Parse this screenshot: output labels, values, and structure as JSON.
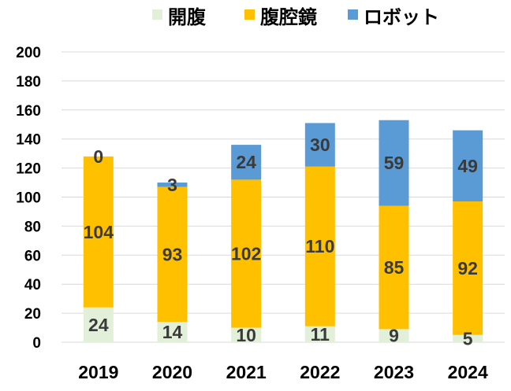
{
  "chart_data": {
    "type": "bar",
    "stacked": true,
    "categories": [
      "2019",
      "2020",
      "2021",
      "2022",
      "2023",
      "2024"
    ],
    "series": [
      {
        "name": "開腹",
        "color": "#e2f0d9",
        "values": [
          24,
          14,
          10,
          11,
          9,
          5
        ]
      },
      {
        "name": "腹腔鏡",
        "color": "#ffc000",
        "values": [
          104,
          93,
          102,
          110,
          85,
          92
        ]
      },
      {
        "name": "ロボット",
        "color": "#5b9bd5",
        "values": [
          0,
          3,
          24,
          30,
          59,
          49
        ]
      }
    ],
    "ylim": [
      0,
      200
    ],
    "yticks": [
      0,
      20,
      40,
      60,
      80,
      100,
      120,
      140,
      160,
      180,
      200
    ],
    "grid": true,
    "legend_position": "top",
    "title": "",
    "xlabel": "",
    "ylabel": ""
  }
}
